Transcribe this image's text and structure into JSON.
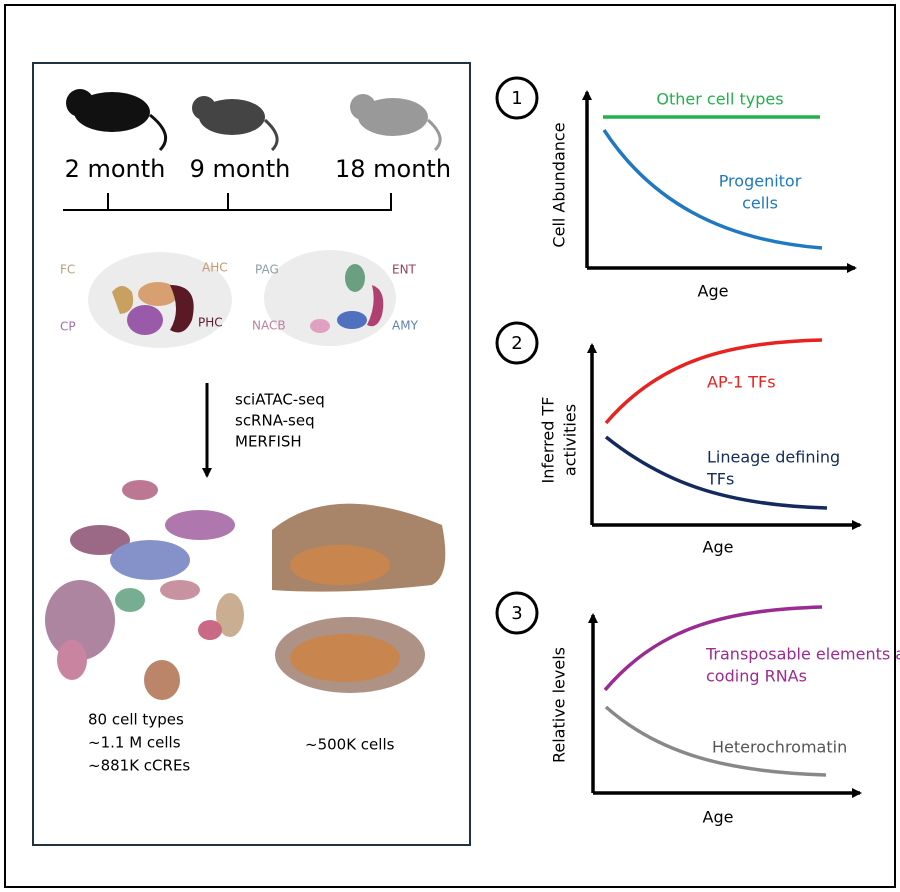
{
  "timeline": {
    "labels": [
      "2 month",
      "9 month",
      "18 month"
    ]
  },
  "regions": {
    "left": [
      "FC",
      "AHC",
      "CP",
      "PHC"
    ],
    "right": [
      "PAG",
      "ENT",
      "NACB",
      "AMY"
    ]
  },
  "methods": [
    "sciATAC-seq",
    "scRNA-seq",
    "MERFISH"
  ],
  "stats_left": [
    "80 cell types",
    "~1.1 M cells",
    "~881K  cCREs"
  ],
  "stats_right": [
    "~500K cells"
  ],
  "panels": [
    {
      "number": "1",
      "y_label": [
        "Cell Abundance"
      ],
      "x_label": "Age",
      "curves": [
        {
          "lines": [
            "Other cell types"
          ]
        },
        {
          "lines": [
            "Progenitor",
            "cells"
          ]
        }
      ]
    },
    {
      "number": "2",
      "y_label": [
        "Inferred TF",
        "activities"
      ],
      "x_label": "Age",
      "curves": [
        {
          "lines": [
            "AP-1 TFs"
          ]
        },
        {
          "lines": [
            "Lineage defining",
            "TFs"
          ]
        }
      ]
    },
    {
      "number": "3",
      "y_label": [
        "Relative levels"
      ],
      "x_label": "Age",
      "curves": [
        {
          "lines": [
            "Transposable elements and non-",
            "coding RNAs"
          ]
        },
        {
          "lines": [
            "Heterochromatin"
          ]
        }
      ]
    }
  ]
}
